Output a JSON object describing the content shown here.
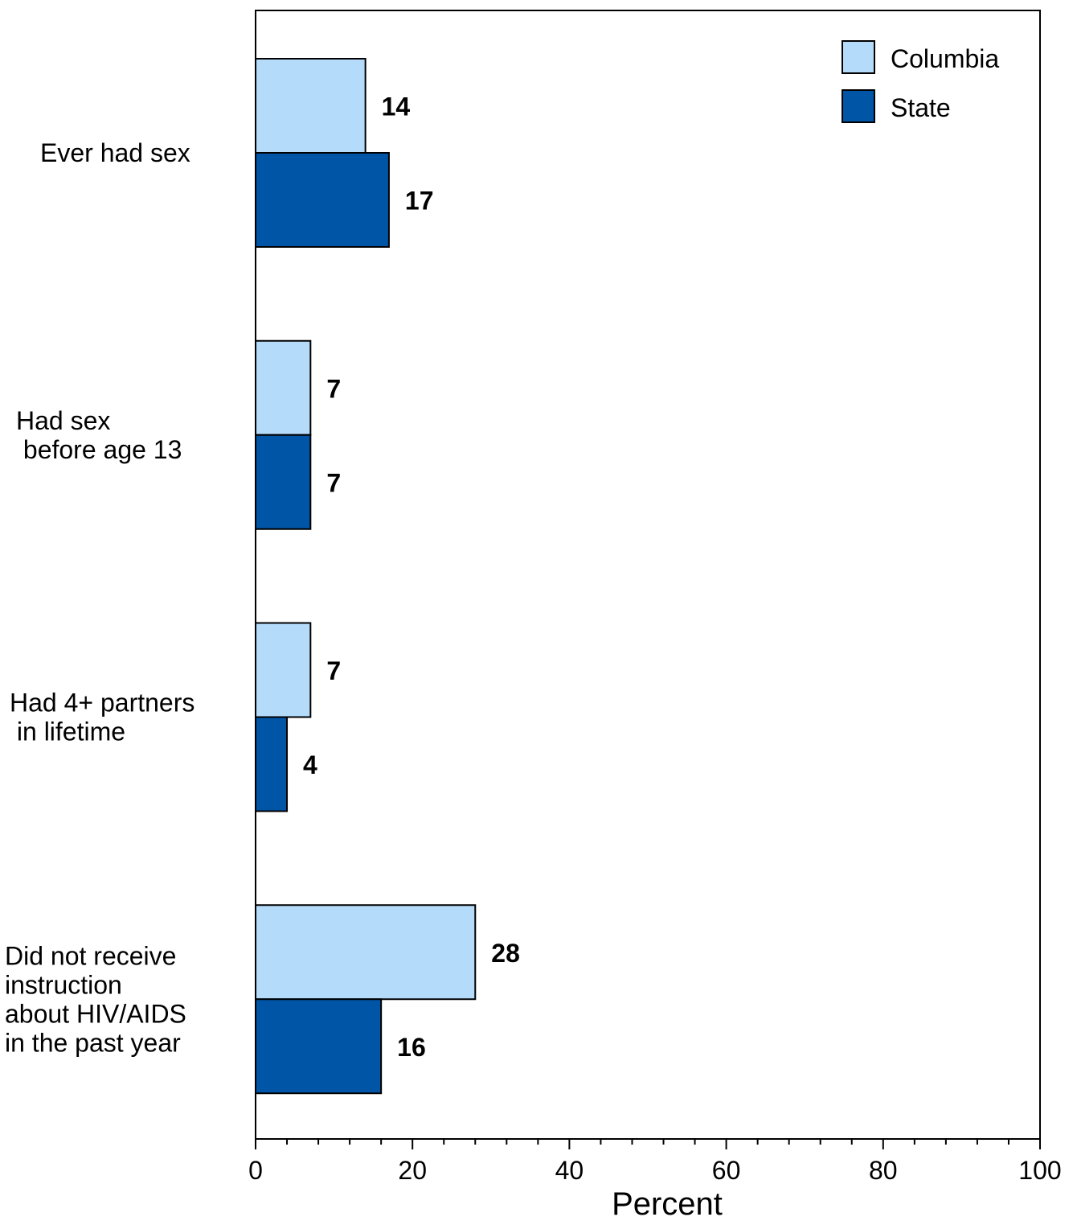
{
  "chart_data": {
    "type": "bar",
    "orientation": "horizontal",
    "categories": [
      [
        "Ever had sex"
      ],
      [
        "Had sex",
        " before age 13"
      ],
      [
        "Had 4+ partners",
        " in lifetime"
      ],
      [
        "Did not receive",
        "instruction",
        "about HIV/AIDS",
        "in the past year"
      ]
    ],
    "series": [
      {
        "name": "Columbia",
        "color": "#b5dbfb",
        "values": [
          14,
          7,
          7,
          28
        ]
      },
      {
        "name": "State",
        "color": "#0055a6",
        "values": [
          17,
          7,
          4,
          16
        ]
      }
    ],
    "xlabel": "Percent",
    "xlim": [
      0,
      100
    ],
    "xticks": [
      0,
      20,
      40,
      60,
      80,
      100
    ],
    "grid": false,
    "legend_position": "top-right"
  }
}
